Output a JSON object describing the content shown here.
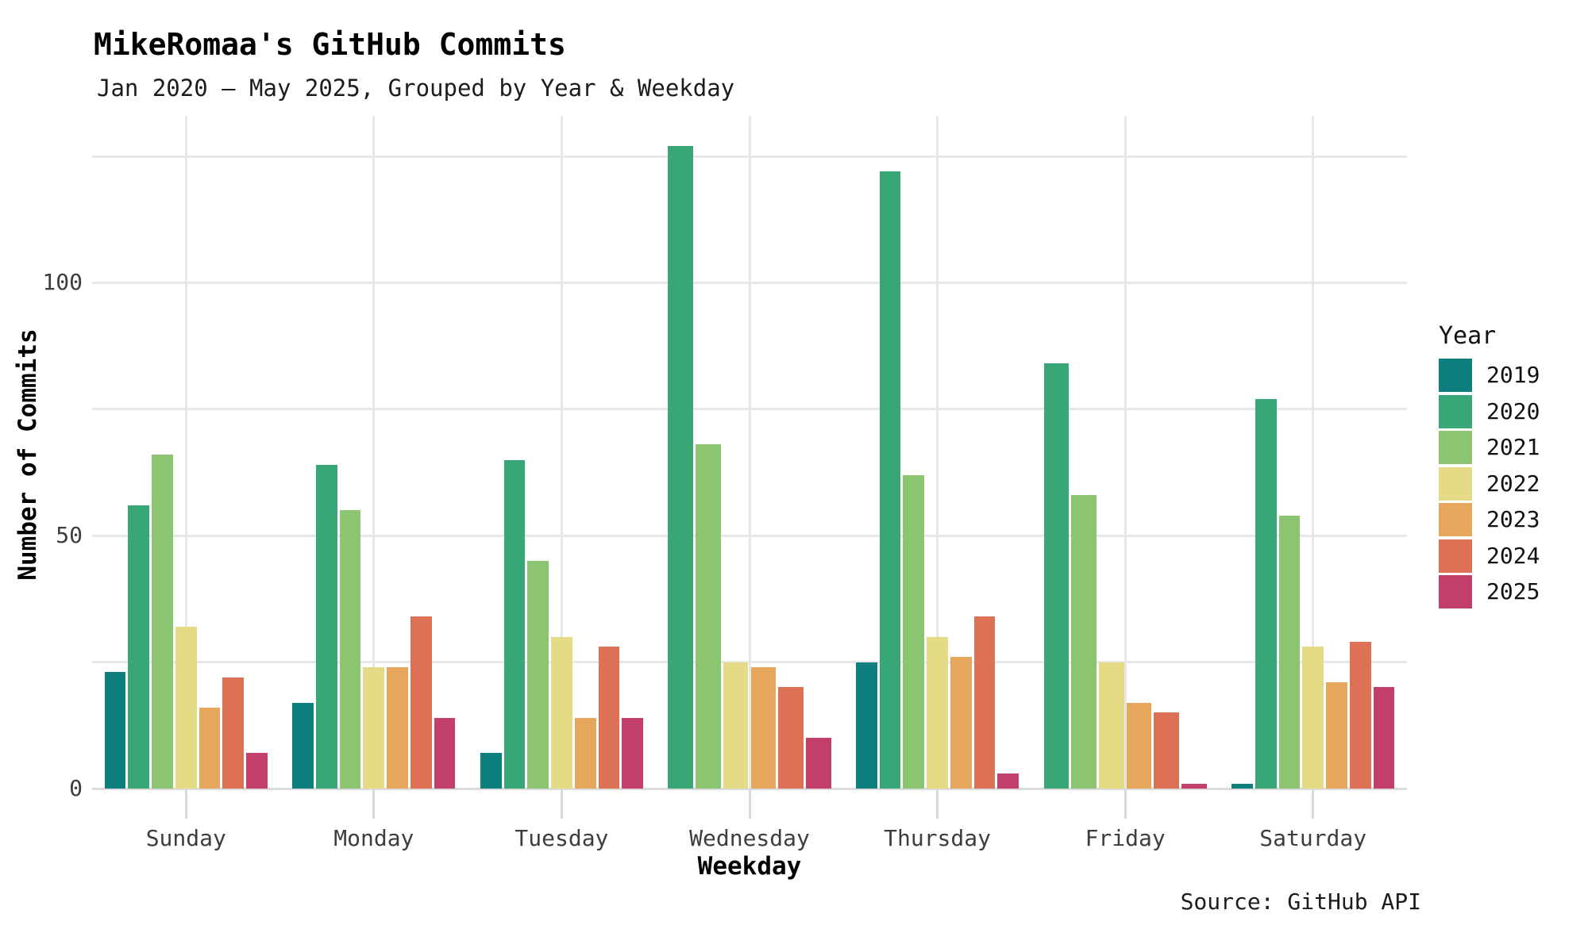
{
  "title": "MikeRomaa's GitHub Commits",
  "subtitle": "Jan 2020 — May 2025, Grouped by Year & Weekday",
  "source": "Source: GitHub API",
  "legend": {
    "title": "Year",
    "position": "right"
  },
  "axes": {
    "x_title": "Weekday",
    "y_title": "Number of Commits",
    "y_tick_labels": [
      "0",
      "50",
      "100"
    ]
  },
  "colors": {
    "background": "#ffffff",
    "gridline": "#e7e7e7",
    "axis_line": "#dcdcdc",
    "tick_mark": "#d9d9d9",
    "axis_text": "#3d3d3d",
    "title_text": "#000000"
  },
  "chart_data": {
    "type": "bar",
    "grouped": true,
    "title": "MikeRomaa's GitHub Commits",
    "subtitle": "Jan 2020 — May 2025, Grouped by Year & Weekday",
    "xlabel": "Weekday",
    "ylabel": "Number of Commits",
    "categories": [
      "Sunday",
      "Monday",
      "Tuesday",
      "Wednesday",
      "Thursday",
      "Friday",
      "Saturday"
    ],
    "series": [
      {
        "name": "2019",
        "color": "#0f7e7f",
        "values": [
          23,
          17,
          7,
          null,
          25,
          null,
          1
        ]
      },
      {
        "name": "2020",
        "color": "#38a677",
        "values": [
          56,
          64,
          65,
          127,
          122,
          84,
          77
        ]
      },
      {
        "name": "2021",
        "color": "#8cc572",
        "values": [
          66,
          55,
          45,
          68,
          62,
          58,
          54
        ]
      },
      {
        "name": "2022",
        "color": "#e5db87",
        "values": [
          32,
          24,
          30,
          25,
          30,
          25,
          28
        ]
      },
      {
        "name": "2023",
        "color": "#e4a75b",
        "values": [
          16,
          24,
          14,
          24,
          26,
          17,
          21
        ]
      },
      {
        "name": "2024",
        "color": "#dd7156",
        "values": [
          22,
          34,
          28,
          20,
          34,
          15,
          29
        ]
      },
      {
        "name": "2025",
        "color": "#c23f69",
        "values": [
          7,
          14,
          14,
          10,
          3,
          1,
          20
        ]
      }
    ],
    "ylim": [
      0,
      133
    ],
    "yticks_labeled": [
      0,
      50,
      100
    ],
    "gridline_step": 25,
    "grid": true,
    "legend_title": "Year",
    "legend_position": "right",
    "source": "Source: GitHub API"
  }
}
